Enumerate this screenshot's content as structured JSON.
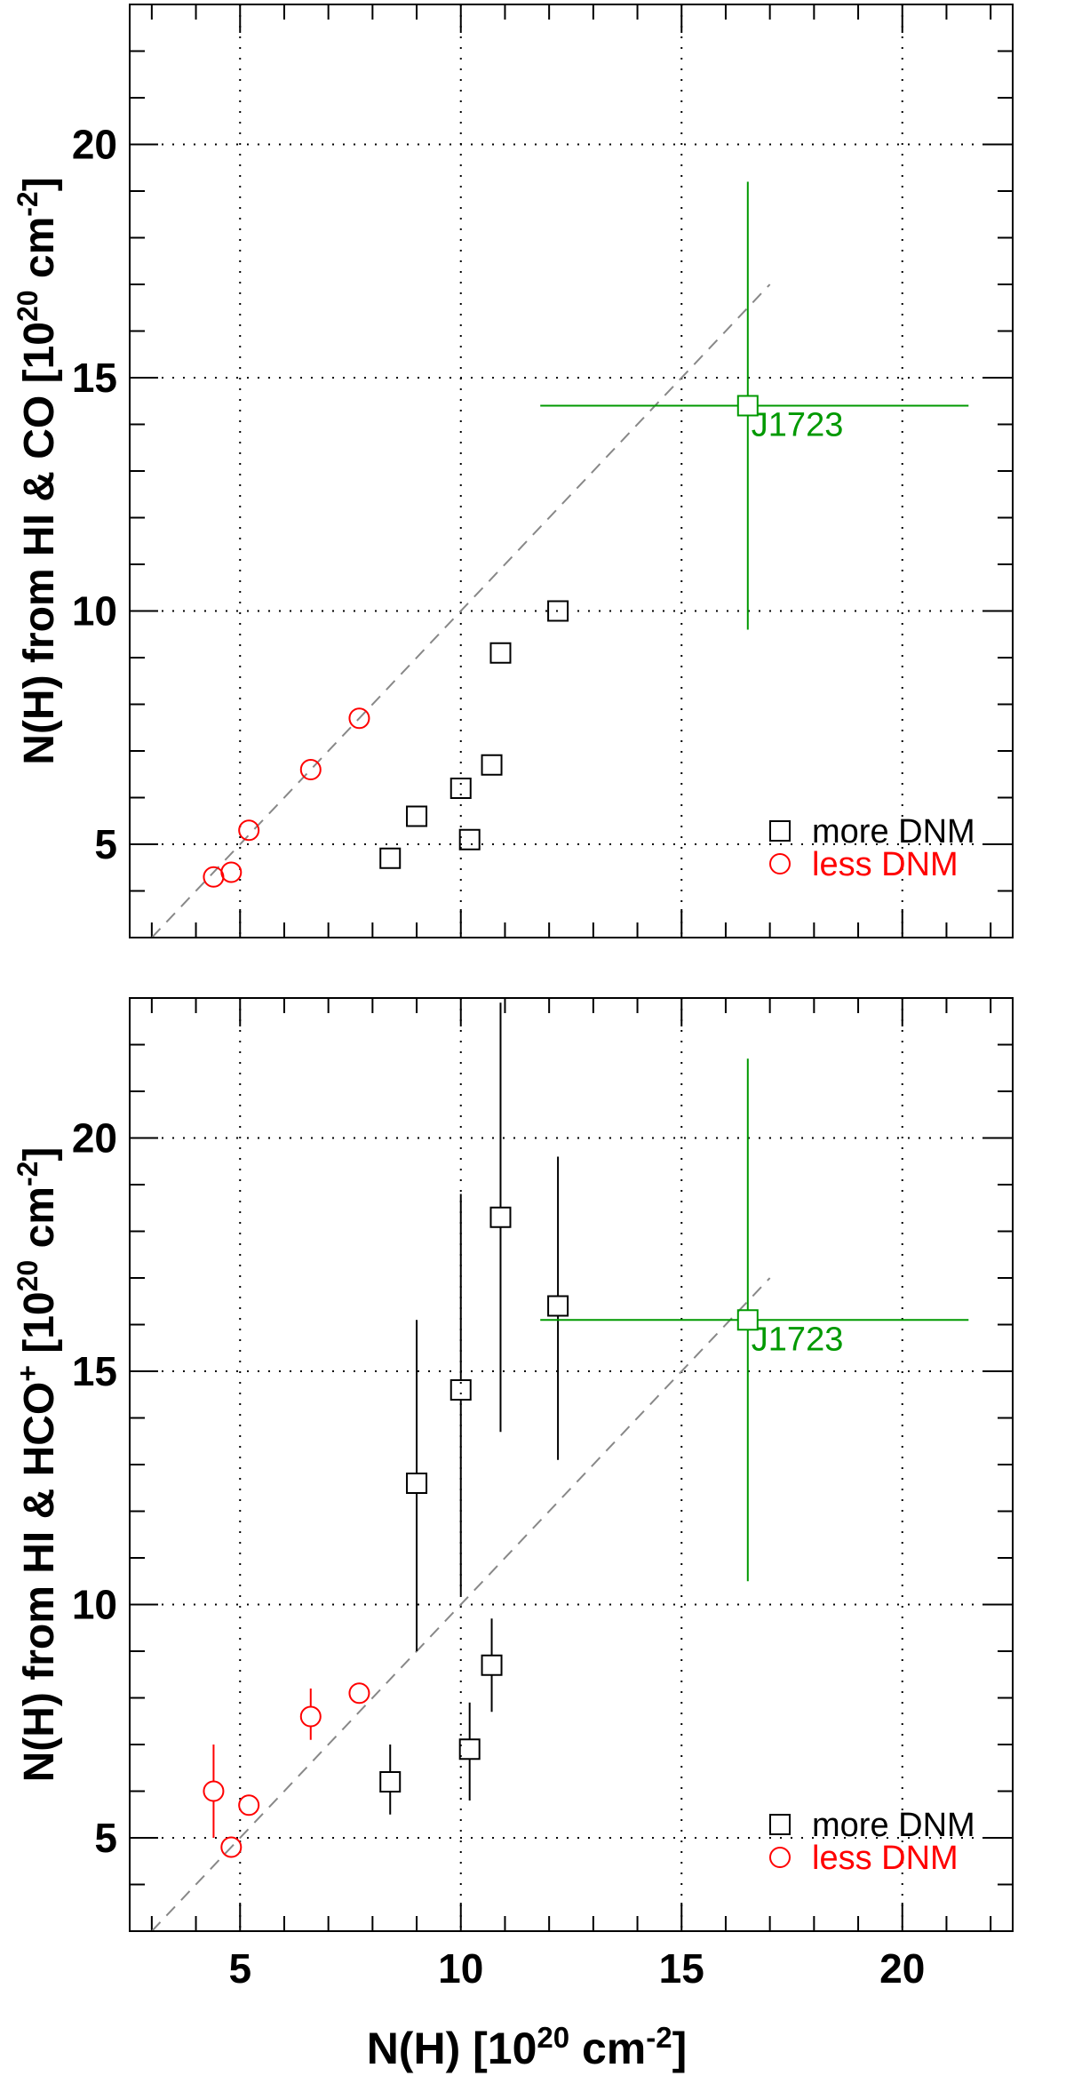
{
  "colors": {
    "more_dnm": "#000000",
    "less_dnm": "#ff0000",
    "outlier": "#009900",
    "diagonal": "#888888"
  },
  "chart_data": [
    {
      "type": "scatter",
      "xlabel_html": "N(H) [10<sup>20</sup> cm<sup>-2</sup>]",
      "ylabel_html": "N(H) from HI & CO [10<sup>20</sup> cm<sup>-2</sup>]",
      "xlim": [
        2.5,
        22.5
      ],
      "ylim": [
        3,
        23
      ],
      "grid": true,
      "xticks": [
        "5",
        "10",
        "15",
        "20"
      ],
      "yticks": [
        "5",
        "10",
        "15",
        "20"
      ],
      "diagonal_line": [
        3,
        17
      ],
      "legend": {
        "position": "bottom-right",
        "entries": [
          "more DNM",
          "less DNM"
        ]
      },
      "series": [
        {
          "name": "more DNM",
          "marker": "square",
          "x": [
            8.4,
            9.0,
            10.0,
            10.2,
            10.7,
            10.9,
            12.2
          ],
          "y": [
            4.7,
            5.6,
            6.2,
            5.1,
            6.7,
            9.1,
            10.0
          ]
        },
        {
          "name": "less DNM",
          "marker": "circle",
          "x": [
            4.4,
            4.8,
            5.2,
            6.6,
            7.7
          ],
          "y": [
            4.3,
            4.4,
            5.3,
            6.6,
            7.7
          ]
        },
        {
          "marker": "square",
          "x": [
            16.5
          ],
          "y": [
            14.4
          ],
          "xerr_range": [
            [
              11.8,
              21.5
            ]
          ],
          "yerr_range": [
            [
              9.6,
              19.2
            ]
          ],
          "annotation": "J1723"
        }
      ]
    },
    {
      "type": "scatter",
      "xlabel_html": "N(H) [10<sup>20</sup> cm<sup>-2</sup>]",
      "ylabel_html": "N(H) from HI & HCO<sup>+</sup> [10<sup>20</sup> cm<sup>-2</sup>]",
      "xlim": [
        2.5,
        22.5
      ],
      "ylim": [
        3,
        23
      ],
      "grid": true,
      "xticks": [
        "5",
        "10",
        "15",
        "20"
      ],
      "yticks": [
        "5",
        "10",
        "15",
        "20"
      ],
      "diagonal_line": [
        3,
        17
      ],
      "legend": {
        "position": "bottom-right",
        "entries": [
          "more DNM",
          "less DNM"
        ]
      },
      "series": [
        {
          "name": "more DNM",
          "marker": "square",
          "x": [
            8.4,
            9.0,
            10.0,
            10.2,
            10.7,
            10.9,
            12.2
          ],
          "y": [
            6.2,
            12.6,
            14.6,
            6.9,
            8.7,
            18.3,
            16.4
          ],
          "yerr_range": [
            [
              5.5,
              7.0
            ],
            [
              9.0,
              16.1
            ],
            [
              10.2,
              18.8
            ],
            [
              5.8,
              7.9
            ],
            [
              7.7,
              9.7
            ],
            [
              13.7,
              22.9
            ],
            [
              13.1,
              19.6
            ]
          ]
        },
        {
          "name": "less DNM",
          "marker": "circle",
          "x": [
            4.4,
            4.8,
            5.2,
            6.6,
            7.7
          ],
          "y": [
            6.0,
            4.8,
            5.7,
            7.6,
            8.1
          ],
          "yerr_range": [
            [
              5.0,
              7.0
            ],
            [
              4.6,
              5.0
            ],
            [
              5.5,
              5.9
            ],
            [
              7.1,
              8.2
            ],
            [
              7.9,
              8.3
            ]
          ]
        },
        {
          "marker": "square",
          "x": [
            16.5
          ],
          "y": [
            16.1
          ],
          "xerr_range": [
            [
              11.8,
              21.5
            ]
          ],
          "yerr_range": [
            [
              10.5,
              21.7
            ]
          ],
          "annotation": "J1723"
        }
      ]
    }
  ]
}
